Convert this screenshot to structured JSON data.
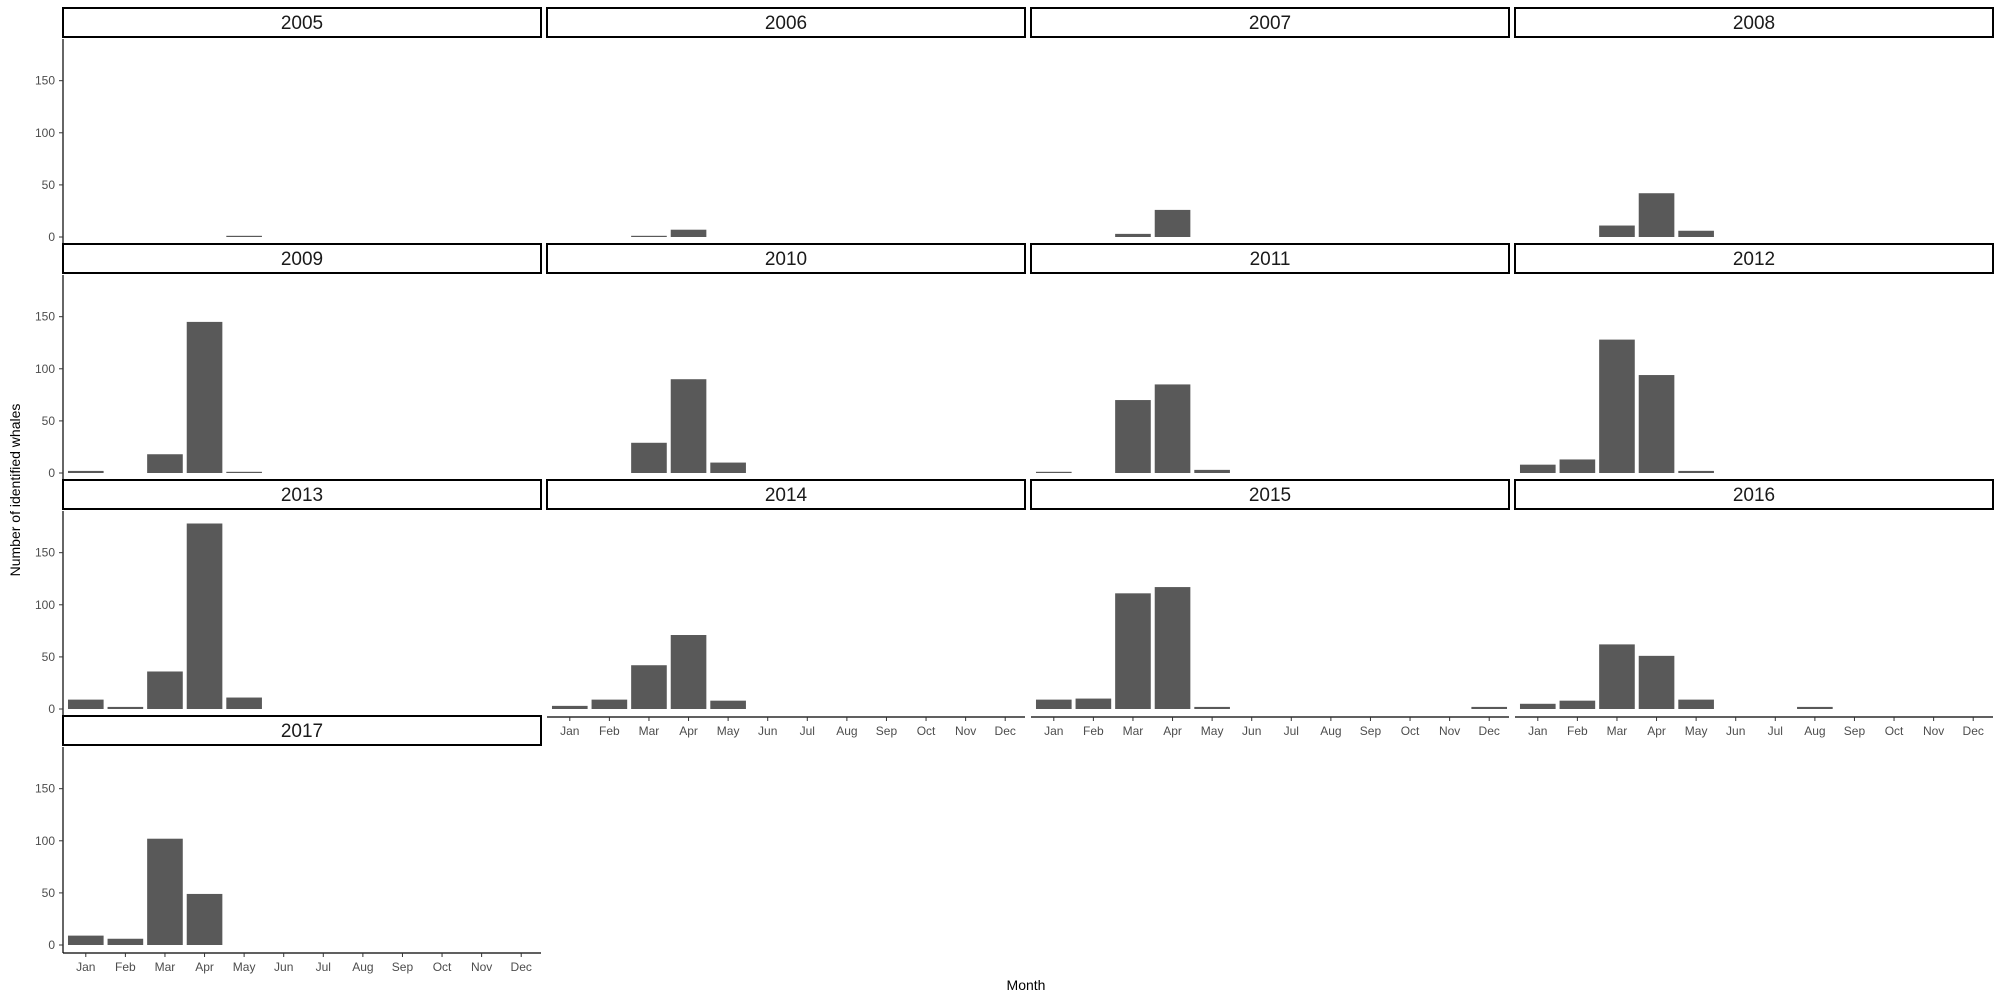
{
  "chart_data": {
    "type": "bar",
    "xlabel": "Month",
    "ylabel": "Number of identified whales",
    "ylim": [
      0,
      190
    ],
    "yticks": [
      0,
      50,
      100,
      150
    ],
    "categories": [
      "Jan",
      "Feb",
      "Mar",
      "Apr",
      "May",
      "Jun",
      "Jul",
      "Aug",
      "Sep",
      "Oct",
      "Nov",
      "Dec"
    ],
    "bar_color": "#595959",
    "grid": false,
    "legend": "none",
    "facets": [
      {
        "title": "2005",
        "values": [
          0,
          0,
          0,
          0,
          1,
          0,
          0,
          0,
          0,
          0,
          0,
          0
        ]
      },
      {
        "title": "2006",
        "values": [
          0,
          0,
          1,
          7,
          0,
          0,
          0,
          0,
          0,
          0,
          0,
          0
        ]
      },
      {
        "title": "2007",
        "values": [
          0,
          0,
          3,
          26,
          0,
          0,
          0,
          0,
          0,
          0,
          0,
          0
        ]
      },
      {
        "title": "2008",
        "values": [
          0,
          0,
          11,
          42,
          6,
          0,
          0,
          0,
          0,
          0,
          0,
          0
        ]
      },
      {
        "title": "2009",
        "values": [
          2,
          0,
          18,
          145,
          1,
          0,
          0,
          0,
          0,
          0,
          0,
          0
        ]
      },
      {
        "title": "2010",
        "values": [
          0,
          0,
          29,
          90,
          10,
          0,
          0,
          0,
          0,
          0,
          0,
          0
        ]
      },
      {
        "title": "2011",
        "values": [
          1,
          0,
          70,
          85,
          3,
          0,
          0,
          0,
          0,
          0,
          0,
          0
        ]
      },
      {
        "title": "2012",
        "values": [
          8,
          13,
          128,
          94,
          2,
          0,
          0,
          0,
          0,
          0,
          0,
          0
        ]
      },
      {
        "title": "2013",
        "values": [
          9,
          2,
          36,
          178,
          11,
          0,
          0,
          0,
          0,
          0,
          0,
          0
        ]
      },
      {
        "title": "2014",
        "values": [
          3,
          9,
          42,
          71,
          8,
          0,
          0,
          0,
          0,
          0,
          0,
          0
        ]
      },
      {
        "title": "2015",
        "values": [
          9,
          10,
          111,
          117,
          2,
          0,
          0,
          0,
          0,
          0,
          0,
          2
        ]
      },
      {
        "title": "2016",
        "values": [
          5,
          8,
          62,
          51,
          9,
          0,
          0,
          2,
          0,
          0,
          0,
          0
        ]
      },
      {
        "title": "2017",
        "values": [
          9,
          6,
          102,
          49,
          0,
          0,
          0,
          0,
          0,
          0,
          0,
          0
        ]
      }
    ]
  }
}
